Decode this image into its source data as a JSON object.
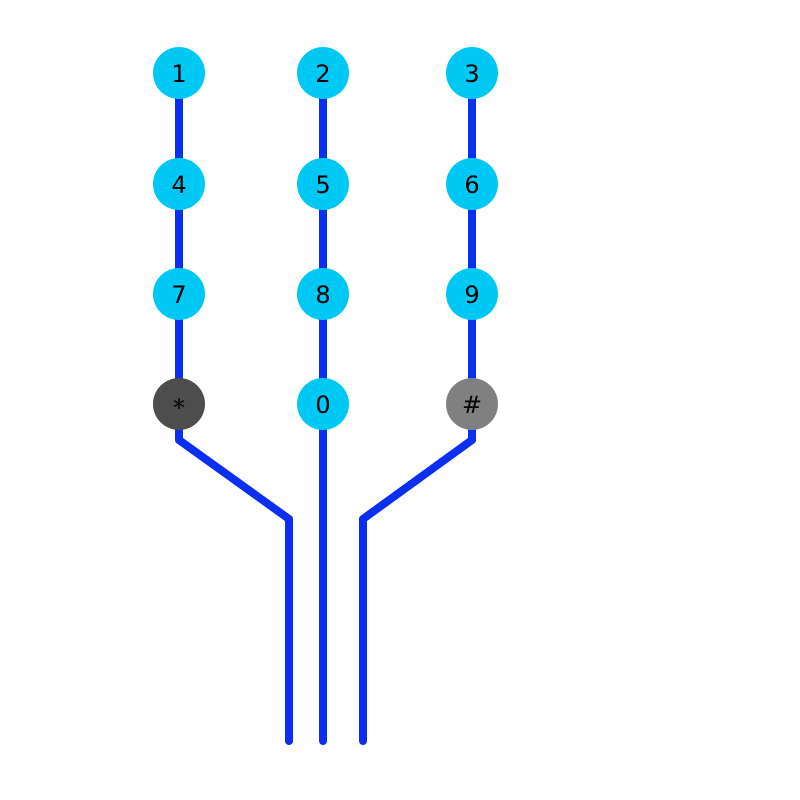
{
  "colors": {
    "background": "#ffffff",
    "wire": "#0a2ff0",
    "key_default": "#00c8f5",
    "key_star": "#4d4d4d",
    "key_hash": "#808080",
    "label": "#000000"
  },
  "keypad": {
    "columns": [
      {
        "name": "left",
        "keys": [
          {
            "label": "1",
            "style": "default"
          },
          {
            "label": "4",
            "style": "default"
          },
          {
            "label": "7",
            "style": "default"
          },
          {
            "label": "*",
            "style": "star"
          }
        ]
      },
      {
        "name": "middle",
        "keys": [
          {
            "label": "2",
            "style": "default"
          },
          {
            "label": "5",
            "style": "default"
          },
          {
            "label": "8",
            "style": "default"
          },
          {
            "label": "0",
            "style": "default"
          }
        ]
      },
      {
        "name": "right",
        "keys": [
          {
            "label": "3",
            "style": "default"
          },
          {
            "label": "6",
            "style": "default"
          },
          {
            "label": "9",
            "style": "default"
          },
          {
            "label": "#",
            "style": "hash"
          }
        ]
      }
    ]
  }
}
